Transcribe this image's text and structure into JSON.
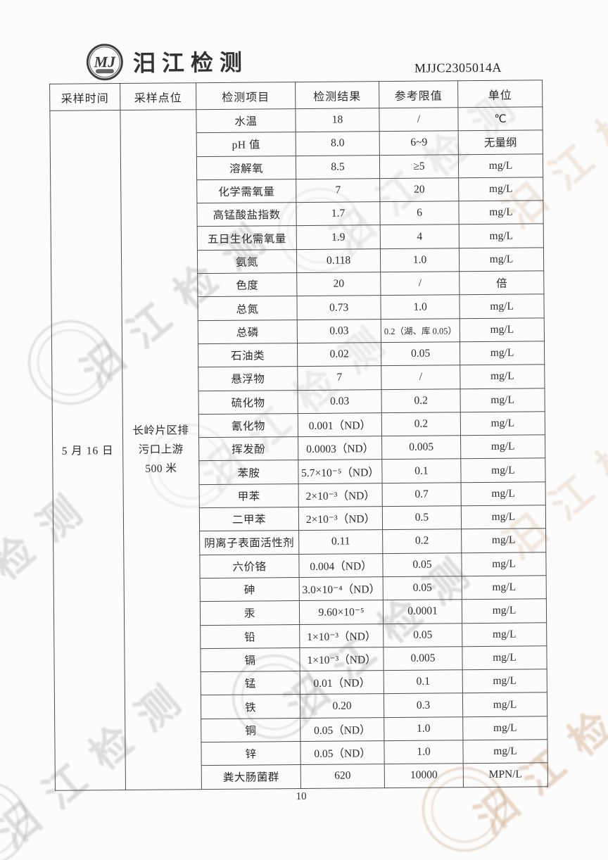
{
  "header": {
    "company_name": "汨江检测",
    "logo_monogram": "MJ",
    "doc_number": "MJJC2305014A"
  },
  "table": {
    "columns": [
      "采样时间",
      "采样点位",
      "检测项目",
      "检测结果",
      "参考限值",
      "单位"
    ],
    "sample_time": "5 月 16 日",
    "sample_location": "长岭片区排污口上游 500 米",
    "rows": [
      {
        "item": "水温",
        "result": "18",
        "limit": "/",
        "unit": "℃"
      },
      {
        "item": "pH 值",
        "result": "8.0",
        "limit": "6~9",
        "unit": "无量纲"
      },
      {
        "item": "溶解氧",
        "result": "8.5",
        "limit": "≥5",
        "unit": "mg/L"
      },
      {
        "item": "化学需氧量",
        "result": "7",
        "limit": "20",
        "unit": "mg/L"
      },
      {
        "item": "高锰酸盐指数",
        "result": "1.7",
        "limit": "6",
        "unit": "mg/L"
      },
      {
        "item": "五日生化需氧量",
        "result": "1.9",
        "limit": "4",
        "unit": "mg/L"
      },
      {
        "item": "氨氮",
        "result": "0.118",
        "limit": "1.0",
        "unit": "mg/L"
      },
      {
        "item": "色度",
        "result": "20",
        "limit": "/",
        "unit": "倍"
      },
      {
        "item": "总氮",
        "result": "0.73",
        "limit": "1.0",
        "unit": "mg/L"
      },
      {
        "item": "总磷",
        "result": "0.03",
        "limit": "0.2（湖、库 0.05）",
        "unit": "mg/L"
      },
      {
        "item": "石油类",
        "result": "0.02",
        "limit": "0.05",
        "unit": "mg/L"
      },
      {
        "item": "悬浮物",
        "result": "7",
        "limit": "/",
        "unit": "mg/L"
      },
      {
        "item": "硫化物",
        "result": "0.03",
        "limit": "0.2",
        "unit": "mg/L"
      },
      {
        "item": "氰化物",
        "result": "0.001（ND）",
        "limit": "0.2",
        "unit": "mg/L"
      },
      {
        "item": "挥发酚",
        "result": "0.0003（ND）",
        "limit": "0.005",
        "unit": "mg/L"
      },
      {
        "item": "苯胺",
        "result": "5.7×10⁻⁵（ND）",
        "limit": "0.1",
        "unit": "mg/L"
      },
      {
        "item": "甲苯",
        "result": "2×10⁻³（ND）",
        "limit": "0.7",
        "unit": "mg/L"
      },
      {
        "item": "二甲苯",
        "result": "2×10⁻³（ND）",
        "limit": "0.5",
        "unit": "mg/L"
      },
      {
        "item": "阴离子表面活性剂",
        "result": "0.11",
        "limit": "0.2",
        "unit": "mg/L"
      },
      {
        "item": "六价铬",
        "result": "0.004（ND）",
        "limit": "0.05",
        "unit": "mg/L"
      },
      {
        "item": "砷",
        "result": "3.0×10⁻⁴（ND）",
        "limit": "0.05",
        "unit": "mg/L"
      },
      {
        "item": "汞",
        "result": "9.60×10⁻⁵",
        "limit": "0.0001",
        "unit": "mg/L"
      },
      {
        "item": "铅",
        "result": "1×10⁻³（ND）",
        "limit": "0.05",
        "unit": "mg/L"
      },
      {
        "item": "镉",
        "result": "1×10⁻³（ND）",
        "limit": "0.005",
        "unit": "mg/L"
      },
      {
        "item": "锰",
        "result": "0.01（ND）",
        "limit": "0.1",
        "unit": "mg/L"
      },
      {
        "item": "铁",
        "result": "0.20",
        "limit": "0.3",
        "unit": "mg/L"
      },
      {
        "item": "铜",
        "result": "0.05（ND）",
        "limit": "1.0",
        "unit": "mg/L"
      },
      {
        "item": "锌",
        "result": "0.05（ND）",
        "limit": "1.0",
        "unit": "mg/L"
      },
      {
        "item": "粪大肠菌群",
        "result": "620",
        "limit": "10000",
        "unit": "MPN/L"
      }
    ]
  },
  "footer": {
    "page_number": "10"
  },
  "watermark": {
    "text": "汨江检测",
    "monogram": "MJ"
  },
  "colors": {
    "page_bg": "#fcfcfc",
    "text": "#2a2a2a",
    "table_border": "#4e4e4e",
    "watermark_gray": "#949494",
    "watermark_tan": "#be9164"
  }
}
